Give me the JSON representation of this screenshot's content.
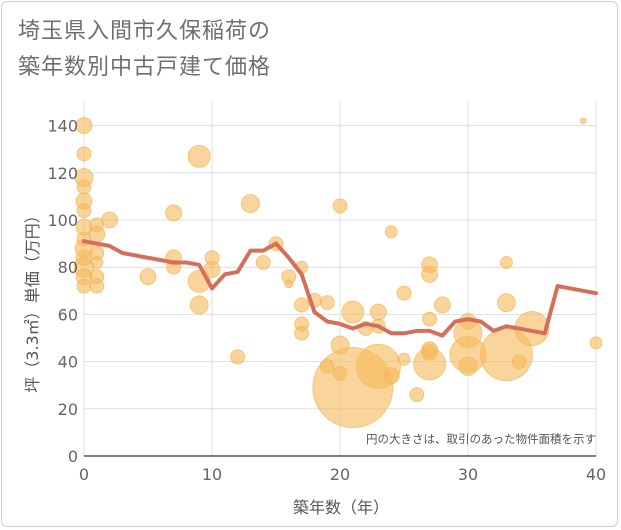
{
  "title_lines": [
    "埼玉県入間市久保稲荷の",
    "築年数別中古戸建て価格"
  ],
  "chart_data": {
    "type": "scatter",
    "title": "埼玉県入間市久保稲荷の築年数別中古戸建て価格",
    "xlabel": "築年数（年）",
    "ylabel": "坪（3.3㎡）単価（万円）",
    "xlim": [
      0,
      40
    ],
    "ylim": [
      0,
      150
    ],
    "xticks": [
      0,
      10,
      20,
      30,
      40
    ],
    "yticks": [
      0,
      20,
      40,
      60,
      80,
      100,
      120,
      140
    ],
    "grid": true,
    "annotation": "円の大きさは、取引のあった物件面積を示す",
    "colors": {
      "bubble": "#f5b95a",
      "trend": "#d4705a",
      "grid": "#d9e0e6"
    },
    "bubbles": [
      {
        "x": 0,
        "y": 140,
        "s": 8
      },
      {
        "x": 0,
        "y": 128,
        "s": 7
      },
      {
        "x": 0,
        "y": 118,
        "s": 9
      },
      {
        "x": 0,
        "y": 114,
        "s": 7
      },
      {
        "x": 0,
        "y": 108,
        "s": 8
      },
      {
        "x": 0,
        "y": 104,
        "s": 7
      },
      {
        "x": 0,
        "y": 97,
        "s": 8
      },
      {
        "x": 0,
        "y": 92,
        "s": 7
      },
      {
        "x": 0,
        "y": 88,
        "s": 9
      },
      {
        "x": 0,
        "y": 84,
        "s": 8
      },
      {
        "x": 0,
        "y": 80,
        "s": 10
      },
      {
        "x": 0,
        "y": 76,
        "s": 8
      },
      {
        "x": 0,
        "y": 72,
        "s": 7
      },
      {
        "x": 1,
        "y": 98,
        "s": 7
      },
      {
        "x": 1,
        "y": 94,
        "s": 8
      },
      {
        "x": 1,
        "y": 86,
        "s": 7
      },
      {
        "x": 1,
        "y": 82,
        "s": 6
      },
      {
        "x": 1,
        "y": 76,
        "s": 7
      },
      {
        "x": 1,
        "y": 72,
        "s": 7
      },
      {
        "x": 2,
        "y": 100,
        "s": 8
      },
      {
        "x": 5,
        "y": 76,
        "s": 8
      },
      {
        "x": 7,
        "y": 103,
        "s": 8
      },
      {
        "x": 7,
        "y": 84,
        "s": 8
      },
      {
        "x": 7,
        "y": 80,
        "s": 7
      },
      {
        "x": 9,
        "y": 127,
        "s": 11
      },
      {
        "x": 9,
        "y": 74,
        "s": 11
      },
      {
        "x": 9,
        "y": 64,
        "s": 9
      },
      {
        "x": 10,
        "y": 84,
        "s": 7
      },
      {
        "x": 10,
        "y": 79,
        "s": 8
      },
      {
        "x": 12,
        "y": 42,
        "s": 7
      },
      {
        "x": 13,
        "y": 107,
        "s": 9
      },
      {
        "x": 14,
        "y": 82,
        "s": 7
      },
      {
        "x": 15,
        "y": 90,
        "s": 7
      },
      {
        "x": 16,
        "y": 76,
        "s": 7
      },
      {
        "x": 16,
        "y": 73,
        "s": 4
      },
      {
        "x": 17,
        "y": 80,
        "s": 6
      },
      {
        "x": 17,
        "y": 64,
        "s": 7
      },
      {
        "x": 17,
        "y": 56,
        "s": 7
      },
      {
        "x": 17,
        "y": 52,
        "s": 7
      },
      {
        "x": 18,
        "y": 66,
        "s": 7
      },
      {
        "x": 19,
        "y": 65,
        "s": 7
      },
      {
        "x": 19,
        "y": 38,
        "s": 7
      },
      {
        "x": 20,
        "y": 106,
        "s": 7
      },
      {
        "x": 20,
        "y": 47,
        "s": 9
      },
      {
        "x": 20,
        "y": 35,
        "s": 7
      },
      {
        "x": 21,
        "y": 29,
        "s": 40
      },
      {
        "x": 21,
        "y": 61,
        "s": 11
      },
      {
        "x": 22,
        "y": 54,
        "s": 7
      },
      {
        "x": 23,
        "y": 61,
        "s": 8
      },
      {
        "x": 23,
        "y": 55,
        "s": 7
      },
      {
        "x": 23,
        "y": 38,
        "s": 22
      },
      {
        "x": 24,
        "y": 95,
        "s": 6
      },
      {
        "x": 24,
        "y": 34,
        "s": 8
      },
      {
        "x": 25,
        "y": 69,
        "s": 7
      },
      {
        "x": 25,
        "y": 41,
        "s": 6
      },
      {
        "x": 26,
        "y": 26,
        "s": 7
      },
      {
        "x": 27,
        "y": 81,
        "s": 8
      },
      {
        "x": 27,
        "y": 77,
        "s": 8
      },
      {
        "x": 27,
        "y": 58,
        "s": 7
      },
      {
        "x": 27,
        "y": 45,
        "s": 8
      },
      {
        "x": 27,
        "y": 44,
        "s": 8
      },
      {
        "x": 27,
        "y": 39,
        "s": 16
      },
      {
        "x": 28,
        "y": 64,
        "s": 8
      },
      {
        "x": 30,
        "y": 57,
        "s": 8
      },
      {
        "x": 30,
        "y": 52,
        "s": 14
      },
      {
        "x": 30,
        "y": 43,
        "s": 18
      },
      {
        "x": 30,
        "y": 38,
        "s": 9
      },
      {
        "x": 33,
        "y": 82,
        "s": 6
      },
      {
        "x": 33,
        "y": 65,
        "s": 9
      },
      {
        "x": 33,
        "y": 43,
        "s": 26
      },
      {
        "x": 34,
        "y": 40,
        "s": 7
      },
      {
        "x": 35,
        "y": 54,
        "s": 17
      },
      {
        "x": 39,
        "y": 142,
        "s": 3
      },
      {
        "x": 40,
        "y": 48,
        "s": 6
      }
    ],
    "trend": {
      "x": [
        0,
        1,
        2,
        3,
        4,
        5,
        6,
        7,
        8,
        9,
        10,
        11,
        12,
        13,
        14,
        15,
        16,
        17,
        18,
        19,
        20,
        21,
        22,
        23,
        24,
        25,
        26,
        27,
        28,
        29,
        30,
        31,
        32,
        33,
        34,
        35,
        36,
        37,
        38,
        39,
        40
      ],
      "y": [
        91,
        90,
        89,
        86,
        85,
        84,
        83,
        82,
        82,
        81,
        71,
        77,
        78,
        87,
        87,
        90,
        84,
        77,
        61,
        57,
        56,
        54,
        56,
        55,
        52,
        52,
        53,
        53,
        51,
        57,
        58,
        57,
        53,
        55,
        54,
        53,
        52,
        72,
        71,
        70,
        69
      ]
    }
  }
}
